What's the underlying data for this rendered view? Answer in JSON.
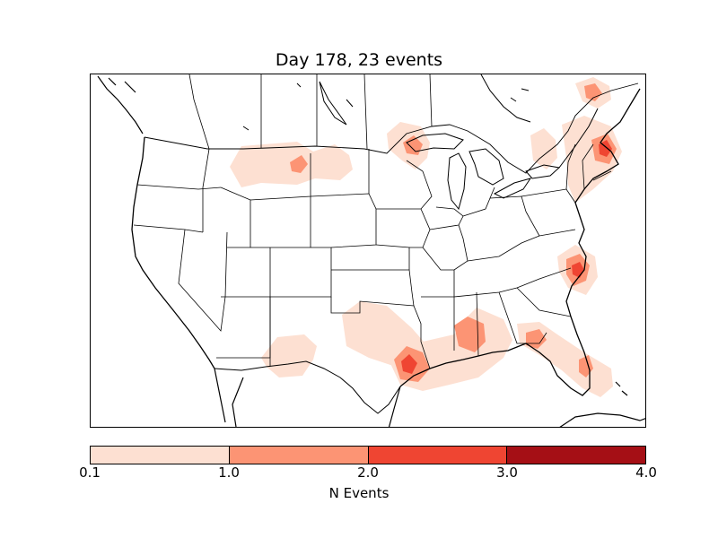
{
  "map": {
    "title": "Day 178, 23 events",
    "colorbar": {
      "label": "N Events",
      "ticks": [
        "0.1",
        "1.0",
        "2.0",
        "3.0",
        "4.0"
      ],
      "levels": [
        {
          "range": "0.1-1.0",
          "color": "#fde0d2"
        },
        {
          "range": "1.0-2.0",
          "color": "#fc9474"
        },
        {
          "range": "2.0-3.0",
          "color": "#ef4532"
        },
        {
          "range": "3.0-4.0",
          "color": "#a50f15"
        }
      ]
    },
    "colors": {
      "level1": "#fde0d2",
      "level2": "#fc9474",
      "level3": "#ef4532",
      "level4": "#a50f15",
      "boundary": "#000000"
    }
  }
}
